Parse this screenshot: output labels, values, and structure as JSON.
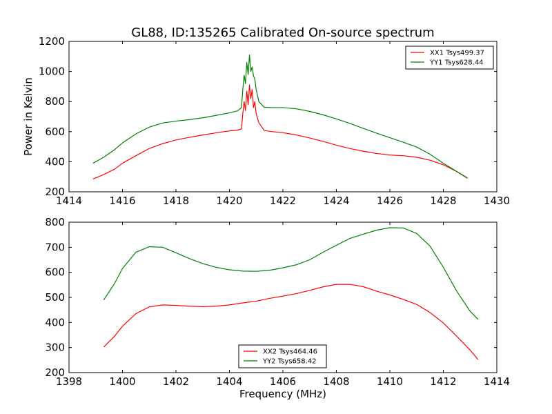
{
  "figure": {
    "title": "GL88, ID:135265 Calibrated On-source spectrum",
    "xlabel": "Frequency (MHz)"
  },
  "colors": {
    "red": "#ff0000",
    "green": "#008000"
  },
  "chart_data": [
    {
      "type": "line",
      "ylabel": "Power in Kelvin",
      "xlim": [
        1414,
        1430
      ],
      "ylim": [
        200,
        1200
      ],
      "xticks": [
        1414,
        1416,
        1418,
        1420,
        1422,
        1424,
        1426,
        1428,
        1430
      ],
      "yticks": [
        200,
        400,
        600,
        800,
        1000,
        1200
      ],
      "legend": "top-right",
      "series": [
        {
          "name": "XX1 Tsys499.37",
          "color": "#ff0000",
          "points": [
            [
              1414.9,
              285
            ],
            [
              1415.3,
              315
            ],
            [
              1415.7,
              350
            ],
            [
              1416.0,
              390
            ],
            [
              1416.5,
              440
            ],
            [
              1417.0,
              488
            ],
            [
              1417.5,
              520
            ],
            [
              1418.0,
              545
            ],
            [
              1418.5,
              562
            ],
            [
              1419.0,
              578
            ],
            [
              1419.5,
              592
            ],
            [
              1420.0,
              605
            ],
            [
              1420.3,
              610
            ],
            [
              1420.45,
              618
            ],
            [
              1420.5,
              720
            ],
            [
              1420.55,
              800
            ],
            [
              1420.6,
              740
            ],
            [
              1420.65,
              870
            ],
            [
              1420.7,
              780
            ],
            [
              1420.75,
              910
            ],
            [
              1420.8,
              820
            ],
            [
              1420.85,
              880
            ],
            [
              1420.9,
              760
            ],
            [
              1420.95,
              800
            ],
            [
              1421.0,
              720
            ],
            [
              1421.1,
              660
            ],
            [
              1421.3,
              608
            ],
            [
              1421.6,
              600
            ],
            [
              1422.0,
              593
            ],
            [
              1422.5,
              578
            ],
            [
              1423.0,
              558
            ],
            [
              1423.5,
              535
            ],
            [
              1424.0,
              510
            ],
            [
              1424.5,
              488
            ],
            [
              1425.0,
              470
            ],
            [
              1425.5,
              455
            ],
            [
              1426.0,
              445
            ],
            [
              1426.5,
              440
            ],
            [
              1427.0,
              430
            ],
            [
              1427.5,
              410
            ],
            [
              1428.0,
              380
            ],
            [
              1428.5,
              335
            ],
            [
              1428.9,
              293
            ]
          ]
        },
        {
          "name": "YY1 Tsys628.44",
          "color": "#008000",
          "points": [
            [
              1414.9,
              390
            ],
            [
              1415.3,
              430
            ],
            [
              1415.7,
              480
            ],
            [
              1416.0,
              525
            ],
            [
              1416.5,
              585
            ],
            [
              1417.0,
              630
            ],
            [
              1417.5,
              658
            ],
            [
              1418.0,
              670
            ],
            [
              1418.5,
              680
            ],
            [
              1419.0,
              692
            ],
            [
              1419.5,
              708
            ],
            [
              1420.0,
              725
            ],
            [
              1420.3,
              738
            ],
            [
              1420.45,
              760
            ],
            [
              1420.5,
              880
            ],
            [
              1420.55,
              975
            ],
            [
              1420.6,
              920
            ],
            [
              1420.65,
              1060
            ],
            [
              1420.7,
              980
            ],
            [
              1420.75,
              1110
            ],
            [
              1420.8,
              1000
            ],
            [
              1420.85,
              1030
            ],
            [
              1420.9,
              970
            ],
            [
              1420.95,
              950
            ],
            [
              1421.0,
              880
            ],
            [
              1421.1,
              800
            ],
            [
              1421.3,
              762
            ],
            [
              1421.6,
              760
            ],
            [
              1422.0,
              760
            ],
            [
              1422.5,
              752
            ],
            [
              1423.0,
              735
            ],
            [
              1423.5,
              712
            ],
            [
              1424.0,
              685
            ],
            [
              1424.5,
              655
            ],
            [
              1425.0,
              622
            ],
            [
              1425.5,
              590
            ],
            [
              1426.0,
              560
            ],
            [
              1426.5,
              530
            ],
            [
              1427.0,
              498
            ],
            [
              1427.5,
              450
            ],
            [
              1428.0,
              390
            ],
            [
              1428.5,
              335
            ],
            [
              1428.9,
              290
            ]
          ]
        }
      ]
    },
    {
      "type": "line",
      "ylabel": "",
      "xlim": [
        1398,
        1414
      ],
      "ylim": [
        200,
        800
      ],
      "xticks": [
        1398,
        1400,
        1402,
        1404,
        1406,
        1408,
        1410,
        1412,
        1414
      ],
      "yticks": [
        200,
        300,
        400,
        500,
        600,
        700,
        800
      ],
      "legend": "bottom-center",
      "series": [
        {
          "name": "XX2 Tsys464.46",
          "color": "#ff0000",
          "points": [
            [
              1399.3,
              302
            ],
            [
              1399.7,
              345
            ],
            [
              1400.0,
              385
            ],
            [
              1400.5,
              435
            ],
            [
              1401.0,
              462
            ],
            [
              1401.5,
              470
            ],
            [
              1402.0,
              468
            ],
            [
              1402.5,
              465
            ],
            [
              1403.0,
              463
            ],
            [
              1403.5,
              465
            ],
            [
              1404.0,
              470
            ],
            [
              1404.5,
              478
            ],
            [
              1405.0,
              485
            ],
            [
              1405.5,
              496
            ],
            [
              1406.0,
              505
            ],
            [
              1406.5,
              515
            ],
            [
              1407.0,
              528
            ],
            [
              1407.5,
              542
            ],
            [
              1408.0,
              552
            ],
            [
              1408.5,
              552
            ],
            [
              1409.0,
              543
            ],
            [
              1409.5,
              525
            ],
            [
              1410.0,
              510
            ],
            [
              1410.5,
              492
            ],
            [
              1411.0,
              472
            ],
            [
              1411.5,
              440
            ],
            [
              1412.0,
              398
            ],
            [
              1412.5,
              345
            ],
            [
              1413.0,
              290
            ],
            [
              1413.3,
              252
            ]
          ]
        },
        {
          "name": "YY2 Tsys658.42",
          "color": "#008000",
          "points": [
            [
              1399.3,
              490
            ],
            [
              1399.7,
              555
            ],
            [
              1400.0,
              615
            ],
            [
              1400.5,
              680
            ],
            [
              1401.0,
              702
            ],
            [
              1401.5,
              700
            ],
            [
              1402.0,
              678
            ],
            [
              1402.5,
              655
            ],
            [
              1403.0,
              635
            ],
            [
              1403.5,
              620
            ],
            [
              1404.0,
              610
            ],
            [
              1404.5,
              605
            ],
            [
              1405.0,
              604
            ],
            [
              1405.5,
              608
            ],
            [
              1406.0,
              618
            ],
            [
              1406.5,
              630
            ],
            [
              1407.0,
              650
            ],
            [
              1407.5,
              680
            ],
            [
              1408.0,
              708
            ],
            [
              1408.5,
              735
            ],
            [
              1409.0,
              752
            ],
            [
              1409.5,
              768
            ],
            [
              1410.0,
              778
            ],
            [
              1410.5,
              777
            ],
            [
              1411.0,
              755
            ],
            [
              1411.5,
              705
            ],
            [
              1412.0,
              620
            ],
            [
              1412.5,
              525
            ],
            [
              1413.0,
              445
            ],
            [
              1413.3,
              412
            ]
          ]
        }
      ]
    }
  ]
}
